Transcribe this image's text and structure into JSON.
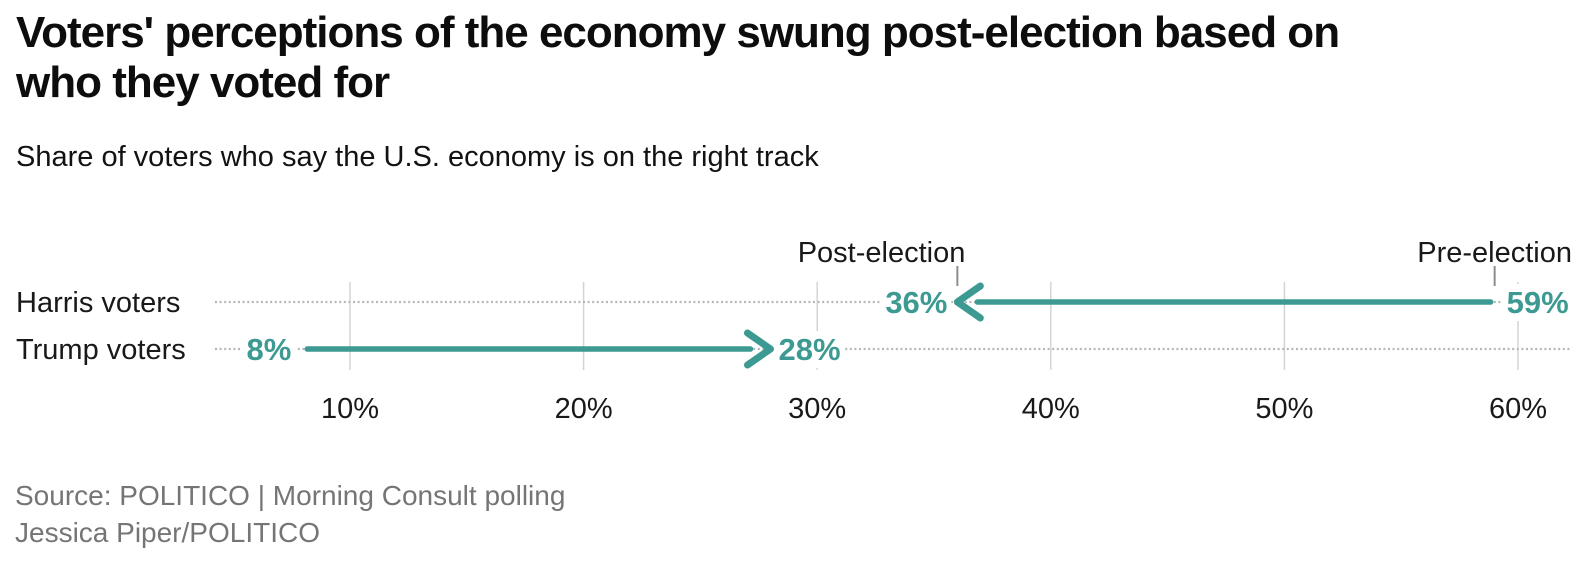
{
  "header": {
    "title_lines": [
      "Voters' perceptions of the economy swung post-election based on",
      "who they voted for"
    ],
    "subtitle": "Share of voters who say the U.S. economy is on the right track"
  },
  "source": {
    "lines": [
      "Source: POLITICO | Morning Consult polling",
      "Jessica Piper/POLITICO"
    ]
  },
  "colors": {
    "accent": "#3d9a92",
    "text": "#191919",
    "muted": "#757575",
    "grid": "#d4d4d4",
    "leader": "#b6b6b6",
    "tick": "#8c8c8c",
    "background": "#ffffff"
  },
  "chart_data": {
    "type": "arrow",
    "title": "Voters' perceptions of the economy swung post-election based on who they voted for",
    "subtitle": "Share of voters who say the U.S. economy is on the right track",
    "xlabel": "",
    "ylabel": "",
    "unit": "%",
    "xlim": [
      4,
      63
    ],
    "grid": true,
    "x_axis": {
      "tick_values": [
        10,
        20,
        30,
        40,
        50,
        60
      ],
      "tick_labels": [
        "10%",
        "20%",
        "30%",
        "40%",
        "50%",
        "60%"
      ]
    },
    "categories": [
      "Harris voters",
      "Trump voters"
    ],
    "series": [
      {
        "name": "Pre-election",
        "values": [
          59,
          8
        ]
      },
      {
        "name": "Post-election",
        "values": [
          36,
          28
        ]
      }
    ],
    "rows": [
      {
        "label": "Harris voters",
        "pre_election": 59,
        "post_election": 36
      },
      {
        "label": "Trump voters",
        "pre_election": 8,
        "post_election": 28
      }
    ],
    "value_label_format": "{v}%",
    "annotations": [
      {
        "text": "Post-election",
        "at_value": 36,
        "align": "end"
      },
      {
        "text": "Pre-election",
        "at_value": 59,
        "align": "middle"
      }
    ]
  }
}
